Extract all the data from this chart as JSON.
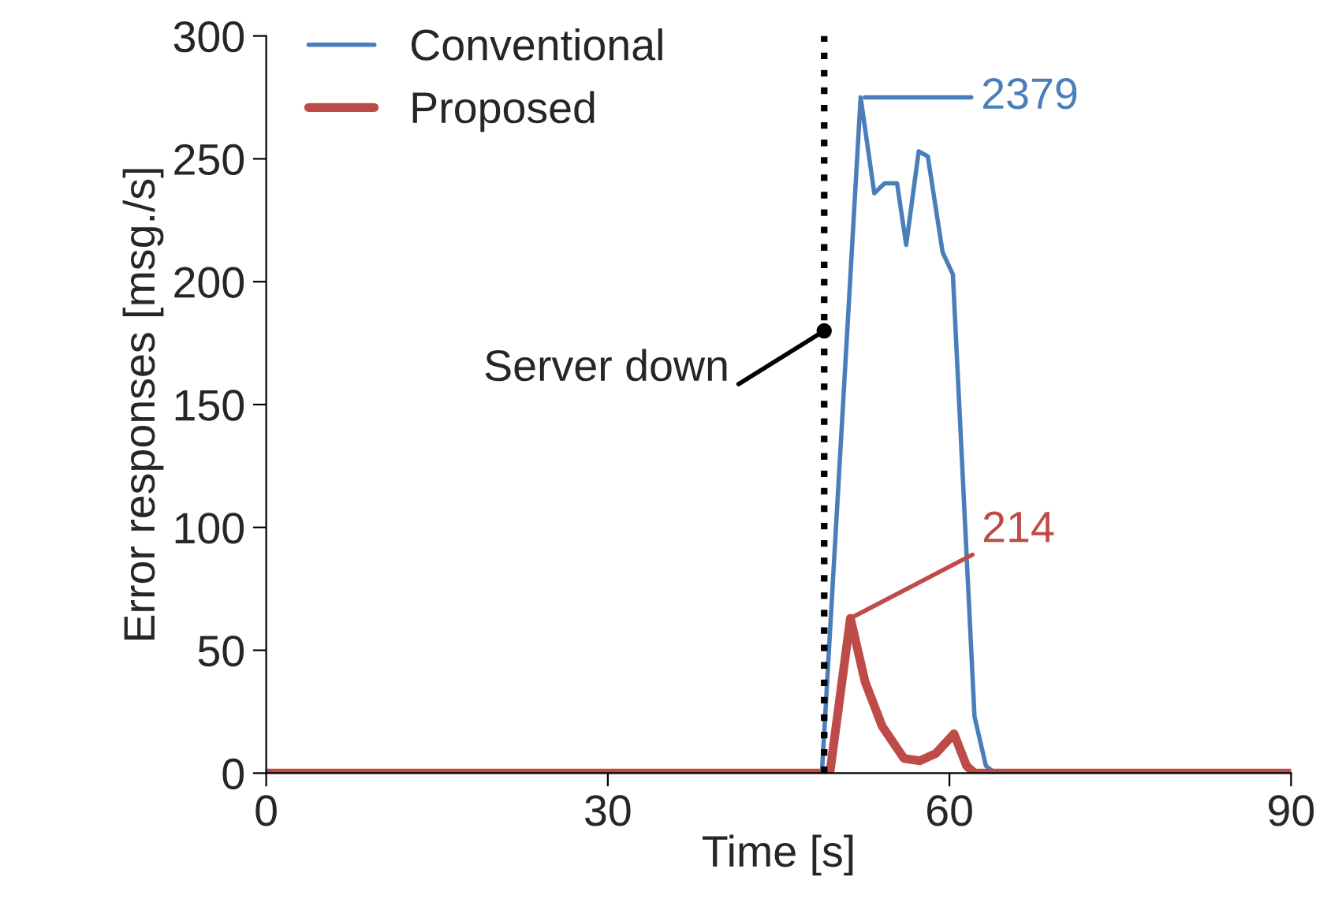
{
  "chart_data": {
    "type": "line",
    "xlabel": "Time [s]",
    "ylabel": "Error responses [msg./s]",
    "xlim": [
      0,
      90
    ],
    "xticks": [
      0,
      30,
      60,
      90
    ],
    "ylim": [
      0,
      300
    ],
    "yticks": [
      0,
      50,
      100,
      150,
      200,
      250,
      300
    ],
    "grid": false,
    "legend": "top left",
    "marker": "none",
    "series": [
      {
        "name": "Conventional",
        "color": "#4a7ebb",
        "x": [
          0,
          48.8,
          52.2,
          53.4,
          54.3,
          55.4,
          56.2,
          57.3,
          58.1,
          59.4,
          60.3,
          62.2,
          63.2,
          64,
          90
        ],
        "values": [
          0,
          0,
          275,
          236,
          240,
          240,
          215,
          253,
          251,
          212,
          203,
          23,
          3,
          0,
          0
        ]
      },
      {
        "name": "Proposed",
        "color": "#be4b48",
        "x": [
          0,
          49.5,
          51.3,
          52.6,
          54.1,
          56,
          57.4,
          58.8,
          60.4,
          61.5,
          62.2,
          90
        ],
        "values": [
          0,
          0,
          63,
          37,
          19,
          6,
          5,
          8,
          16,
          3,
          0,
          0
        ]
      }
    ],
    "ref_lines": [
      {
        "axis": "x",
        "value": 49,
        "label": "Server down",
        "color": "#000000",
        "line_style": "dotted"
      }
    ],
    "annotations": [
      {
        "text": "2379",
        "x": 52.2,
        "y": 275
      },
      {
        "text": "214",
        "x": 51.3,
        "y": 63
      }
    ]
  }
}
